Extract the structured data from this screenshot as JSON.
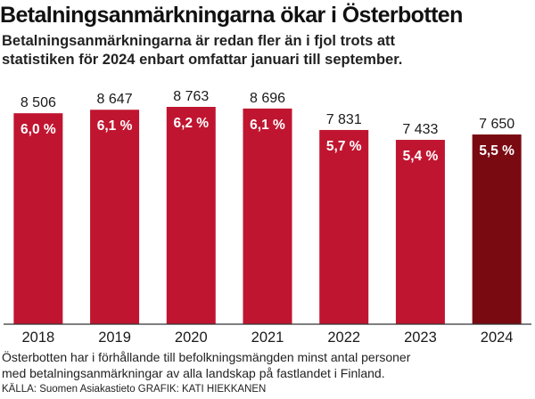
{
  "title": "Betalningsanmärkningarna ökar i Österbotten",
  "subtitle_lines": [
    "Betalningsanmärkningarna är redan fler än i fjol trots att",
    "statistiken för 2024 enbart omfattar januari till september."
  ],
  "footnote_lines": [
    "Österbotten har i förhållande till befolkningsmängden minst antal personer",
    "med betalningsanmärkningar av alla landskap på fastlandet i Finland."
  ],
  "source": "KÄLLA: Suomen Asiakastieto GRAFIK: KATI HIEKKANEN",
  "colors": {
    "bar": "#c01530",
    "bar_highlight": "#7a0a12",
    "axis": "#333333",
    "text": "#1a1a1a"
  },
  "chart_data": {
    "type": "bar",
    "categories": [
      "2018",
      "2019",
      "2020",
      "2021",
      "2022",
      "2023",
      "2024"
    ],
    "values": [
      8506,
      8647,
      8763,
      8696,
      7831,
      7433,
      7650
    ],
    "value_labels": [
      "8 506",
      "8 647",
      "8 763",
      "8 696",
      "7 831",
      "7 433",
      "7 650"
    ],
    "percent_labels": [
      "6,0 %",
      "6,1 %",
      "6,2 %",
      "6,1 %",
      "5,7 %",
      "5,4 %",
      "5,5 %"
    ],
    "highlight_index": 6,
    "ylim": [
      0,
      8763
    ],
    "grid": false,
    "xlabel": "",
    "ylabel": ""
  }
}
